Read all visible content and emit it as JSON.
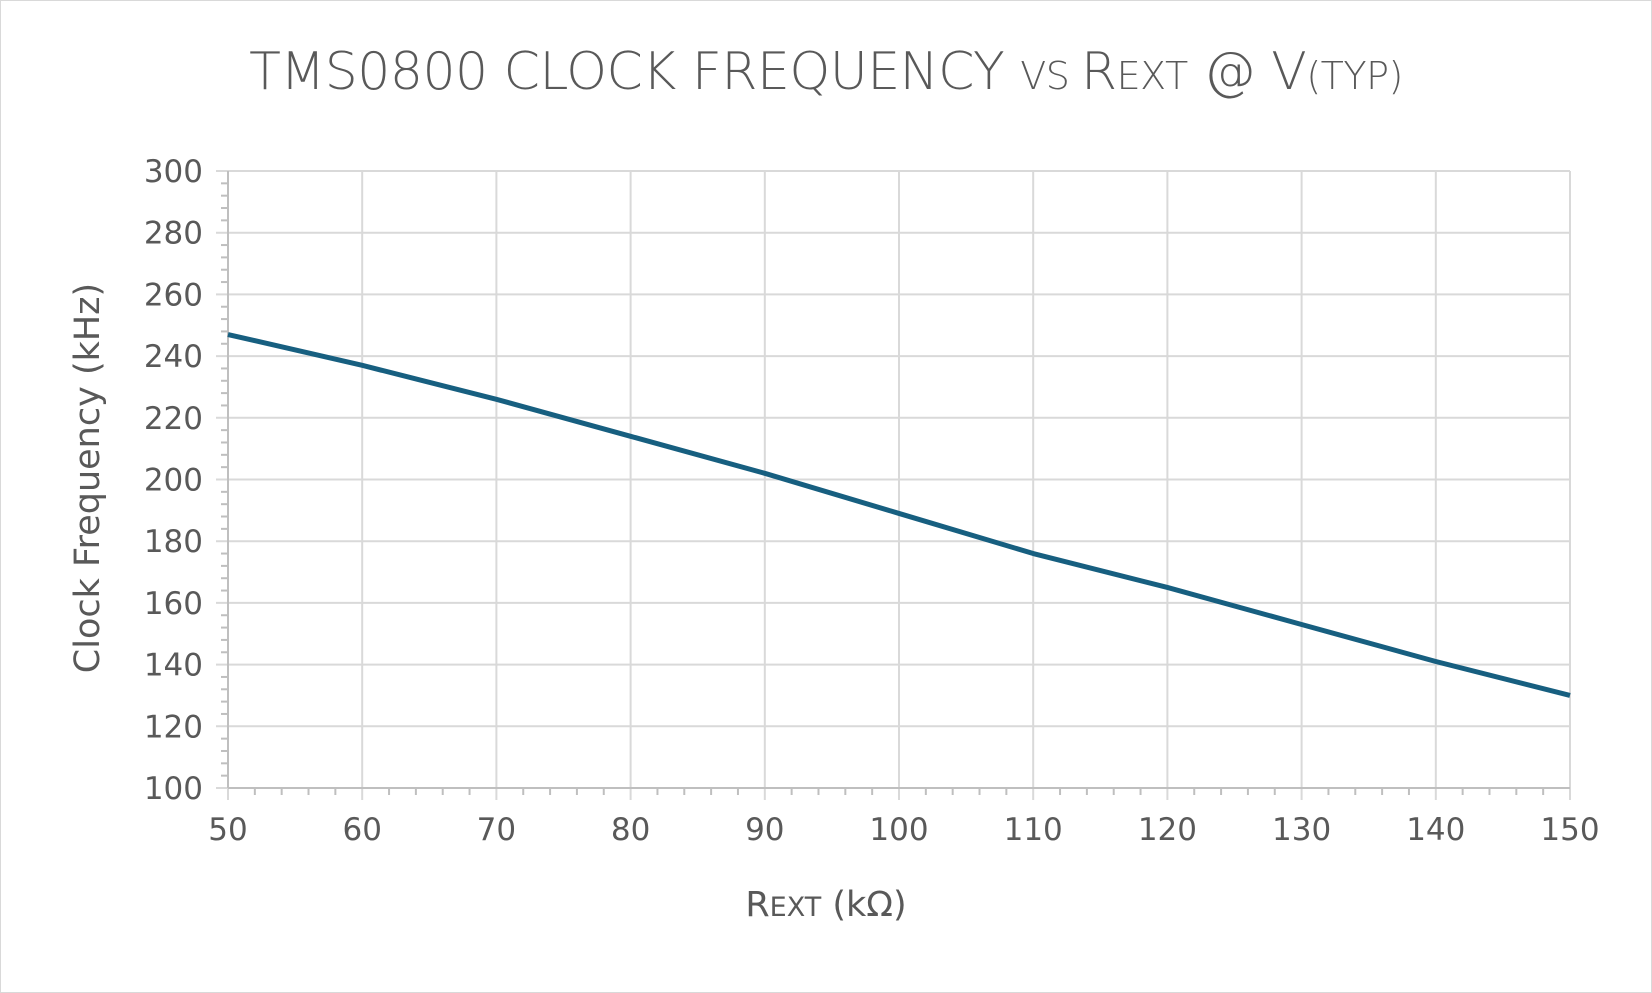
{
  "chart_data": {
    "type": "line",
    "title": {
      "main": "TMS0800 CLOCK FREQUENCY ",
      "vs": "VS ",
      "r": "R",
      "ext": "EXT",
      "at": " @ V",
      "typ": "(TYP)"
    },
    "xlabel": {
      "r": "R",
      "ext": "EXT",
      "unit": " (kΩ)"
    },
    "ylabel": "Clock Frequency (kHz)",
    "xlim": [
      50,
      150
    ],
    "ylim": [
      100,
      300
    ],
    "xticks": [
      50,
      60,
      70,
      80,
      90,
      100,
      110,
      120,
      130,
      140,
      150
    ],
    "yticks": [
      100,
      120,
      140,
      160,
      180,
      200,
      220,
      240,
      260,
      280,
      300
    ],
    "grid": true,
    "series": [
      {
        "name": "Clock Frequency",
        "color": "#175f80",
        "x": [
          50,
          60,
          70,
          80,
          90,
          100,
          110,
          120,
          130,
          140,
          150
        ],
        "y": [
          247,
          237,
          226,
          214,
          202,
          189,
          176,
          165,
          153,
          141,
          130
        ]
      }
    ]
  }
}
